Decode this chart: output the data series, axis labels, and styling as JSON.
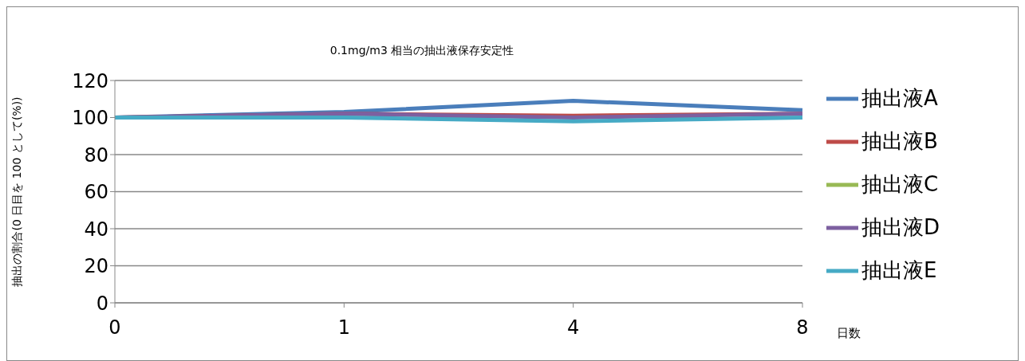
{
  "chart_data": {
    "type": "line",
    "title": "0.1mg/m3 相当の抽出液保存安定性",
    "xlabel": "日数",
    "ylabel": "抽出の割合(0 日目を 100 として(%))",
    "categories": [
      "0",
      "1",
      "4",
      "8"
    ],
    "series": [
      {
        "name": "抽出液A",
        "color": "#4a7ebb",
        "values": [
          100,
          103,
          109,
          104
        ]
      },
      {
        "name": "抽出液B",
        "color": "#be4b48",
        "values": [
          100,
          102,
          101,
          102
        ]
      },
      {
        "name": "抽出液C",
        "color": "#98b954",
        "values": [
          null,
          null,
          null,
          null
        ]
      },
      {
        "name": "抽出液D",
        "color": "#7d60a0",
        "values": [
          100,
          102,
          100,
          102
        ]
      },
      {
        "name": "抽出液E",
        "color": "#46aac5",
        "values": [
          100,
          100,
          98,
          100
        ]
      }
    ],
    "ylim": [
      0,
      120
    ],
    "yticks": [
      0,
      20,
      40,
      60,
      80,
      100,
      120
    ],
    "grid": "y",
    "legend": "right",
    "marker": "none",
    "line_style": "solid"
  }
}
